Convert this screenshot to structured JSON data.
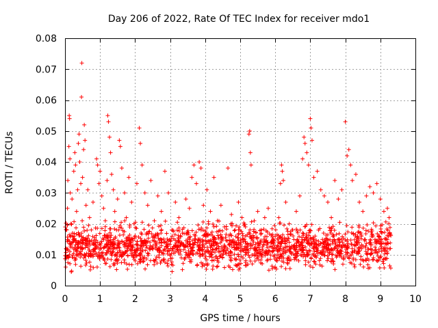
{
  "chart_data": {
    "type": "scatter",
    "title": "Day 206 of 2022, Rate Of TEC Index for receiver mdo1",
    "xlabel": "GPS time / hours",
    "ylabel": "ROTI / TECUs",
    "xlim": [
      0,
      10
    ],
    "ylim": [
      0,
      0.08
    ],
    "x_ticks": [
      0,
      1,
      2,
      3,
      4,
      5,
      6,
      7,
      8,
      9,
      10
    ],
    "x_tick_labels": [
      "0",
      "1",
      "2",
      "3",
      "4",
      "5",
      "6",
      "7",
      "8",
      "9",
      "10"
    ],
    "y_ticks": [
      0,
      0.01,
      0.02,
      0.03,
      0.04,
      0.05,
      0.06,
      0.07,
      0.08
    ],
    "y_tick_labels": [
      "0",
      "0.01",
      "0.02",
      "0.03",
      "0.04",
      "0.05",
      "0.06",
      "0.07",
      "0.08"
    ],
    "grid": true,
    "marker": "plus",
    "color": "#ff0000",
    "series": [
      {
        "name": "ROTI",
        "points": [
          [
            0.02,
            0.006
          ],
          [
            0.03,
            0.012
          ],
          [
            0.05,
            0.018
          ],
          [
            0.07,
            0.025
          ],
          [
            0.08,
            0.034
          ],
          [
            0.09,
            0.009
          ],
          [
            0.11,
            0.045
          ],
          [
            0.12,
            0.055
          ],
          [
            0.13,
            0.054
          ],
          [
            0.14,
            0.041
          ],
          [
            0.15,
            0.03
          ],
          [
            0.17,
            0.02
          ],
          [
            0.2,
            0.028
          ],
          [
            0.22,
            0.014
          ],
          [
            0.25,
            0.037
          ],
          [
            0.28,
            0.043
          ],
          [
            0.3,
            0.039
          ],
          [
            0.33,
            0.024
          ],
          [
            0.36,
            0.031
          ],
          [
            0.38,
            0.046
          ],
          [
            0.4,
            0.049
          ],
          [
            0.42,
            0.04
          ],
          [
            0.45,
            0.033
          ],
          [
            0.47,
            0.061
          ],
          [
            0.48,
            0.072
          ],
          [
            0.5,
            0.035
          ],
          [
            0.53,
            0.044
          ],
          [
            0.55,
            0.052
          ],
          [
            0.57,
            0.047
          ],
          [
            0.6,
            0.026
          ],
          [
            0.65,
            0.031
          ],
          [
            0.7,
            0.022
          ],
          [
            0.75,
            0.018
          ],
          [
            0.8,
            0.027
          ],
          [
            0.85,
            0.012
          ],
          [
            0.9,
            0.041
          ],
          [
            0.93,
            0.039
          ],
          [
            0.97,
            0.033
          ],
          [
            1.0,
            0.037
          ],
          [
            1.05,
            0.029
          ],
          [
            1.1,
            0.025
          ],
          [
            1.15,
            0.021
          ],
          [
            1.2,
            0.034
          ],
          [
            1.22,
            0.055
          ],
          [
            1.24,
            0.053
          ],
          [
            1.27,
            0.048
          ],
          [
            1.3,
            0.043
          ],
          [
            1.33,
            0.036
          ],
          [
            1.38,
            0.031
          ],
          [
            1.42,
            0.024
          ],
          [
            1.47,
            0.018
          ],
          [
            1.5,
            0.028
          ],
          [
            1.55,
            0.047
          ],
          [
            1.58,
            0.045
          ],
          [
            1.62,
            0.038
          ],
          [
            1.7,
            0.03
          ],
          [
            1.75,
            0.022
          ],
          [
            1.82,
            0.035
          ],
          [
            1.9,
            0.027
          ],
          [
            1.97,
            0.02
          ],
          [
            2.05,
            0.033
          ],
          [
            2.12,
            0.051
          ],
          [
            2.15,
            0.046
          ],
          [
            2.2,
            0.039
          ],
          [
            2.28,
            0.03
          ],
          [
            2.36,
            0.026
          ],
          [
            2.45,
            0.034
          ],
          [
            2.55,
            0.021
          ],
          [
            2.65,
            0.029
          ],
          [
            2.75,
            0.024
          ],
          [
            2.85,
            0.037
          ],
          [
            2.95,
            0.03
          ],
          [
            3.05,
            0.018
          ],
          [
            3.15,
            0.027
          ],
          [
            3.25,
            0.022
          ],
          [
            3.35,
            0.017
          ],
          [
            3.45,
            0.028
          ],
          [
            3.55,
            0.025
          ],
          [
            3.62,
            0.035
          ],
          [
            3.68,
            0.039
          ],
          [
            3.75,
            0.033
          ],
          [
            3.83,
            0.04
          ],
          [
            3.88,
            0.038
          ],
          [
            3.95,
            0.026
          ],
          [
            4.05,
            0.031
          ],
          [
            4.15,
            0.024
          ],
          [
            4.25,
            0.035
          ],
          [
            4.35,
            0.021
          ],
          [
            4.45,
            0.026
          ],
          [
            4.55,
            0.019
          ],
          [
            4.65,
            0.038
          ],
          [
            4.75,
            0.023
          ],
          [
            4.85,
            0.018
          ],
          [
            4.95,
            0.027
          ],
          [
            5.05,
            0.022
          ],
          [
            5.15,
            0.019
          ],
          [
            5.25,
            0.049
          ],
          [
            5.27,
            0.05
          ],
          [
            5.29,
            0.043
          ],
          [
            5.31,
            0.039
          ],
          [
            5.4,
            0.021
          ],
          [
            5.5,
            0.024
          ],
          [
            5.6,
            0.018
          ],
          [
            5.7,
            0.022
          ],
          [
            5.8,
            0.025
          ],
          [
            5.9,
            0.014
          ],
          [
            6.0,
            0.016
          ],
          [
            6.1,
            0.022
          ],
          [
            6.15,
            0.033
          ],
          [
            6.18,
            0.039
          ],
          [
            6.2,
            0.037
          ],
          [
            6.23,
            0.034
          ],
          [
            6.3,
            0.027
          ],
          [
            6.4,
            0.02
          ],
          [
            6.5,
            0.018
          ],
          [
            6.6,
            0.024
          ],
          [
            6.7,
            0.029
          ],
          [
            6.78,
            0.041
          ],
          [
            6.82,
            0.048
          ],
          [
            6.85,
            0.046
          ],
          [
            6.9,
            0.043
          ],
          [
            6.95,
            0.039
          ],
          [
            7.0,
            0.054
          ],
          [
            7.02,
            0.051
          ],
          [
            7.05,
            0.047
          ],
          [
            7.1,
            0.035
          ],
          [
            7.2,
            0.037
          ],
          [
            7.3,
            0.031
          ],
          [
            7.4,
            0.029
          ],
          [
            7.5,
            0.027
          ],
          [
            7.6,
            0.022
          ],
          [
            7.7,
            0.034
          ],
          [
            7.8,
            0.028
          ],
          [
            7.9,
            0.031
          ],
          [
            8.0,
            0.053
          ],
          [
            8.05,
            0.042
          ],
          [
            8.1,
            0.044
          ],
          [
            8.15,
            0.039
          ],
          [
            8.2,
            0.034
          ],
          [
            8.3,
            0.036
          ],
          [
            8.4,
            0.027
          ],
          [
            8.5,
            0.024
          ],
          [
            8.6,
            0.029
          ],
          [
            8.7,
            0.032
          ],
          [
            8.8,
            0.03
          ],
          [
            8.9,
            0.033
          ],
          [
            9.0,
            0.028
          ],
          [
            9.1,
            0.024
          ],
          [
            9.2,
            0.025
          ],
          [
            9.25,
            0.022
          ]
        ],
        "dense_band": {
          "x_range": [
            0,
            9.3
          ],
          "y_typical_range": [
            0.003,
            0.02
          ],
          "y_center": 0.01
        }
      }
    ]
  }
}
